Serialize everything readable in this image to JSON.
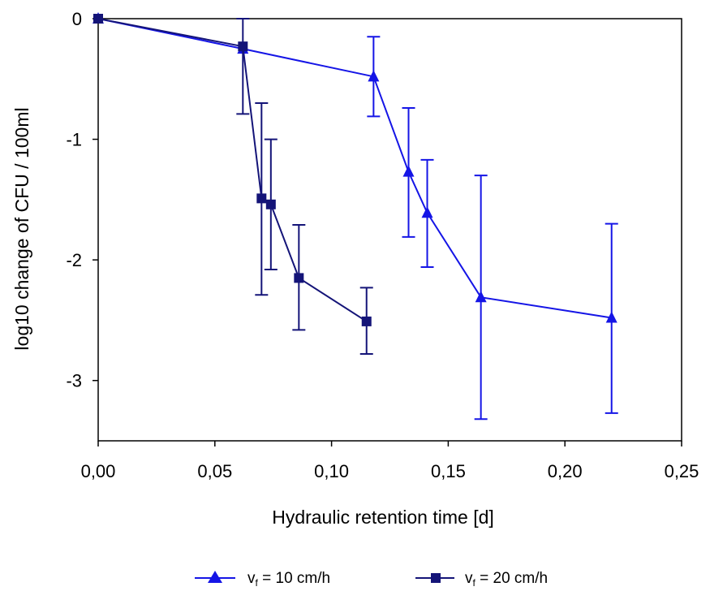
{
  "chart_data": {
    "type": "line",
    "title": "",
    "xlabel": "Hydraulic retention time [d]",
    "ylabel": "log10 change of CFU / 100ml",
    "xlim": [
      0,
      0.25
    ],
    "ylim": [
      -3.5,
      0
    ],
    "x_ticks": [
      "0,00",
      "0,05",
      "0,10",
      "0,15",
      "0,20",
      "0,25"
    ],
    "x_tick_values": [
      0,
      0.05,
      0.1,
      0.15,
      0.2,
      0.25
    ],
    "y_ticks": [
      "0",
      "-1",
      "-2",
      "-3"
    ],
    "y_tick_values": [
      0,
      -1,
      -2,
      -3
    ],
    "grid": false,
    "legend_position": "bottom",
    "series": [
      {
        "name": "v",
        "name_subscript": "f",
        "name_suffix": " = 10 cm/h",
        "marker": "triangle",
        "color": "#1515e6",
        "points": [
          {
            "x": 0.0,
            "y": 0.0,
            "err_low": 0.0,
            "err_high": 0.0
          },
          {
            "x": 0.062,
            "y": -0.25,
            "err_low": -0.25,
            "err_high": -0.25
          },
          {
            "x": 0.118,
            "y": -0.48,
            "err_low": -0.81,
            "err_high": -0.15
          },
          {
            "x": 0.133,
            "y": -1.27,
            "err_low": -1.81,
            "err_high": -0.74
          },
          {
            "x": 0.141,
            "y": -1.61,
            "err_low": -2.06,
            "err_high": -1.17
          },
          {
            "x": 0.164,
            "y": -2.31,
            "err_low": -3.32,
            "err_high": -1.3
          },
          {
            "x": 0.22,
            "y": -2.48,
            "err_low": -3.27,
            "err_high": -1.7
          }
        ]
      },
      {
        "name": "v",
        "name_subscript": "f",
        "name_suffix": " = 20 cm/h",
        "marker": "square",
        "color": "#141478",
        "points": [
          {
            "x": 0.0,
            "y": 0.0,
            "err_low": 0.0,
            "err_high": 0.0
          },
          {
            "x": 0.062,
            "y": -0.23,
            "err_low": -0.79,
            "err_high": 0.0
          },
          {
            "x": 0.07,
            "y": -1.49,
            "err_low": -2.29,
            "err_high": -0.7
          },
          {
            "x": 0.074,
            "y": -1.54,
            "err_low": -2.08,
            "err_high": -1.0
          },
          {
            "x": 0.086,
            "y": -2.15,
            "err_low": -2.58,
            "err_high": -1.71
          },
          {
            "x": 0.115,
            "y": -2.51,
            "err_low": -2.78,
            "err_high": -2.23
          }
        ]
      }
    ]
  }
}
